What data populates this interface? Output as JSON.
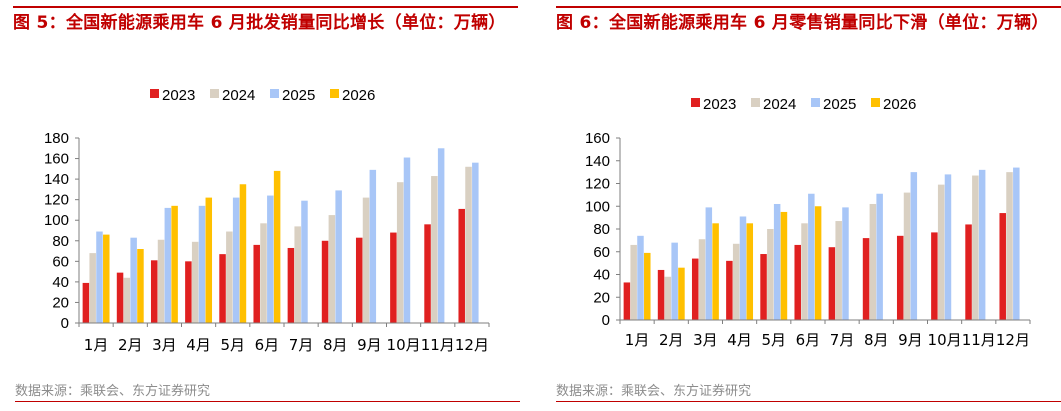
{
  "colors": {
    "2023": "#e02020",
    "2024": "#d9d0c2",
    "2025": "#a8c6f7",
    "2026": "#ffc000",
    "title": "#c00000"
  },
  "source_text": "数据来源：乘联会、东方证券研究",
  "chart_data": [
    {
      "type": "bar",
      "title": "图 5：全国新能源乘用车 6 月批发销量同比增长（单位：万辆）",
      "categories": [
        "1月",
        "2月",
        "3月",
        "4月",
        "5月",
        "6月",
        "7月",
        "8月",
        "9月",
        "10月",
        "11月",
        "12月"
      ],
      "ylim": [
        0,
        180
      ],
      "yticks": [
        0,
        20,
        40,
        60,
        80,
        100,
        120,
        140,
        160,
        180
      ],
      "grid": false,
      "legend_position": "top",
      "series": [
        {
          "name": "2023",
          "values": [
            39,
            49,
            61,
            60,
            67,
            76,
            73,
            80,
            83,
            88,
            96,
            111
          ]
        },
        {
          "name": "2024",
          "values": [
            68,
            44,
            81,
            79,
            89,
            97,
            94,
            105,
            122,
            137,
            143,
            152
          ]
        },
        {
          "name": "2025",
          "values": [
            89,
            83,
            112,
            114,
            122,
            124,
            119,
            129,
            149,
            161,
            170,
            156
          ]
        },
        {
          "name": "2026",
          "values": [
            86,
            72,
            114,
            122,
            135,
            148,
            null,
            null,
            null,
            null,
            null,
            null
          ]
        }
      ]
    },
    {
      "type": "bar",
      "title": "图 6：全国新能源乘用车 6 月零售销量同比下滑（单位：万辆）",
      "categories": [
        "1月",
        "2月",
        "3月",
        "4月",
        "5月",
        "6月",
        "7月",
        "8月",
        "9月",
        "10月",
        "11月",
        "12月"
      ],
      "ylim": [
        0,
        160
      ],
      "yticks": [
        0,
        20,
        40,
        60,
        80,
        100,
        120,
        140,
        160
      ],
      "grid": false,
      "legend_position": "top",
      "series": [
        {
          "name": "2023",
          "values": [
            33,
            44,
            54,
            52,
            58,
            66,
            64,
            72,
            74,
            77,
            84,
            94
          ]
        },
        {
          "name": "2024",
          "values": [
            66,
            38,
            71,
            67,
            80,
            85,
            87,
            102,
            112,
            119,
            127,
            130
          ]
        },
        {
          "name": "2025",
          "values": [
            74,
            68,
            99,
            91,
            102,
            111,
            99,
            111,
            130,
            128,
            132,
            134
          ]
        },
        {
          "name": "2026",
          "values": [
            59,
            46,
            85,
            85,
            95,
            100,
            null,
            null,
            null,
            null,
            null,
            null
          ]
        }
      ]
    }
  ]
}
